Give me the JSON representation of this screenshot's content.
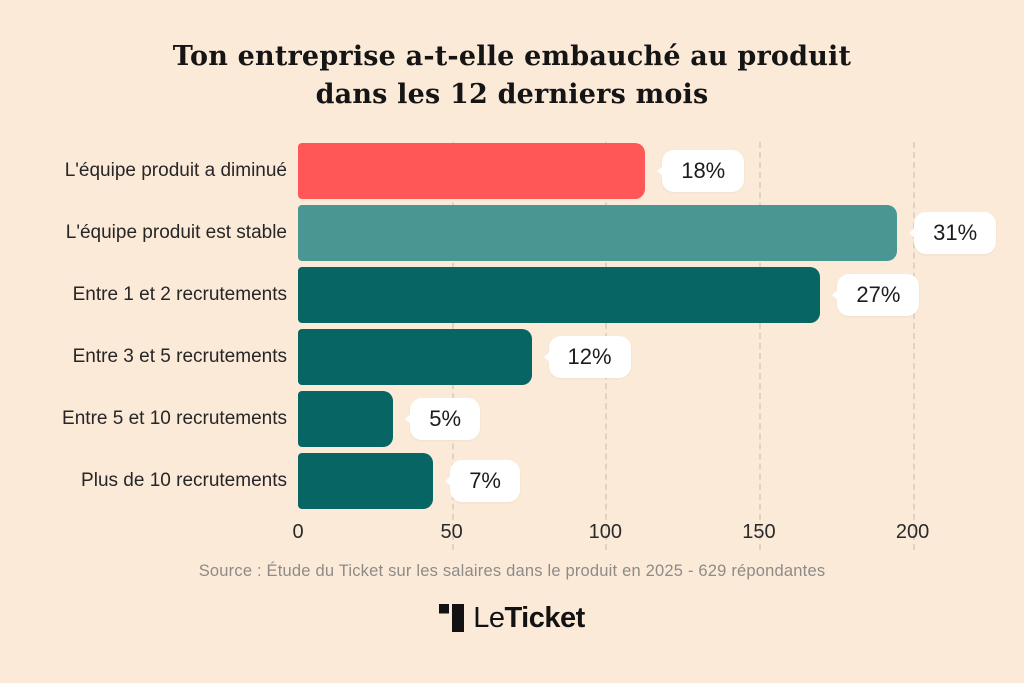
{
  "title": {
    "line1": "Ton entreprise a-t-elle embauché au produit",
    "line2": "dans les 12 derniers mois"
  },
  "chart_data": {
    "type": "bar",
    "orientation": "horizontal",
    "title": "Ton entreprise a-t-elle embauché au produit dans les 12 derniers mois",
    "categories": [
      "L'équipe produit a diminué",
      "L'équipe produit est stable",
      "Entre 1 et 2 recrutements",
      "Entre 3 et 5 recrutements",
      "Entre 5 et 10 recrutements",
      "Plus de 10 recrutements"
    ],
    "values": [
      113,
      195,
      170,
      76,
      31,
      44
    ],
    "value_labels": [
      "18%",
      "31%",
      "27%",
      "12%",
      "5%",
      "7%"
    ],
    "bar_colors": [
      "#ff5757",
      "#4a9692",
      "#076663",
      "#076663",
      "#076663",
      "#076663"
    ],
    "x_ticks": [
      0,
      50,
      100,
      150,
      200
    ],
    "xlim": [
      0,
      220
    ],
    "grid": "vertical-dashed",
    "legend": "none",
    "note": "bar lengths are respondent counts; callout labels are percentages of 629 respondents"
  },
  "source": "Source : Étude du Ticket sur les salaires dans le produit en 2025 - 629 répondantes",
  "logo": {
    "text_light": "Le",
    "text_bold": "Ticket"
  },
  "colors": {
    "background": "#fcead9",
    "accent_red": "#ff5757",
    "teal_medium": "#4a9692",
    "teal_dark": "#076663",
    "callout_bg": "#ffffff",
    "text_dark": "#1c1c1c",
    "source_gray": "#8d8b87",
    "gridline": "#e0d3c3"
  }
}
